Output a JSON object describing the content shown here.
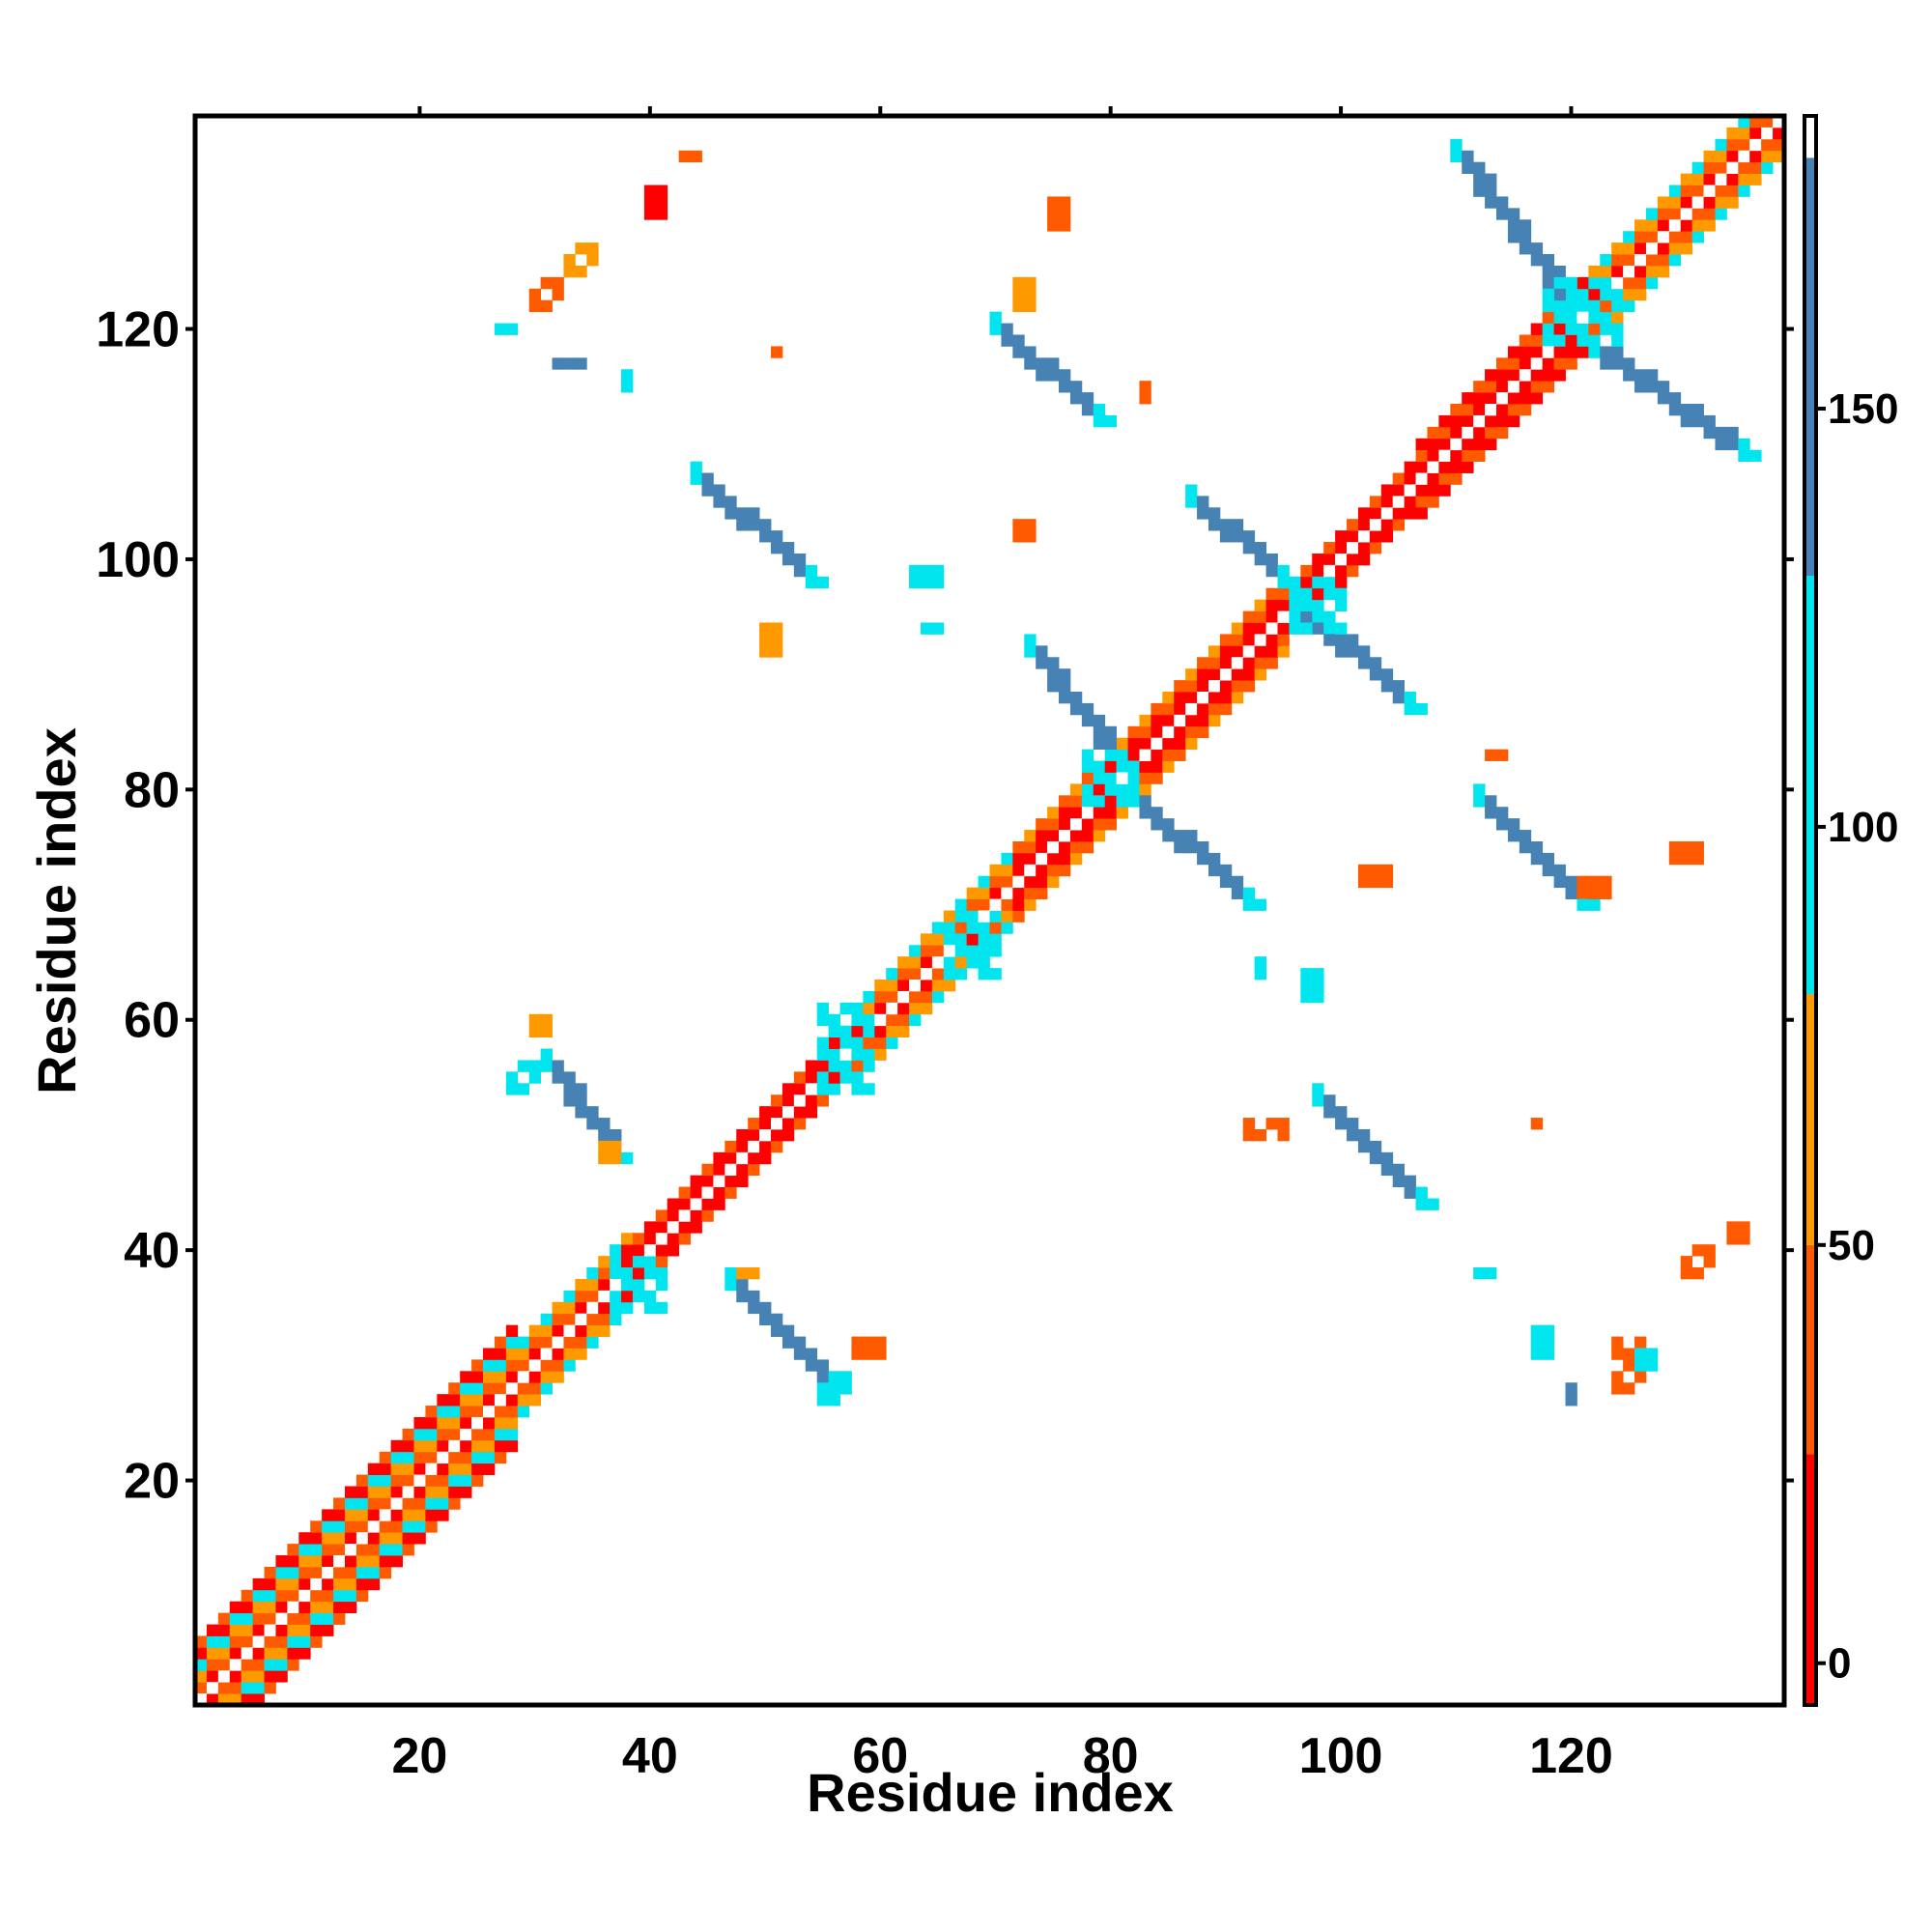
{
  "chart_data": {
    "type": "heatmap",
    "title": "",
    "xlabel": "Residue index",
    "ylabel": "Residue index",
    "xlim": [
      1,
      138
    ],
    "ylim": [
      1,
      138
    ],
    "x_ticks": [
      20,
      40,
      60,
      80,
      100,
      120
    ],
    "y_ticks": [
      20,
      40,
      60,
      80,
      100,
      120
    ],
    "colorbar": {
      "ticks": [
        0,
        50,
        100,
        150
      ],
      "range": [
        -5,
        185
      ],
      "bands": [
        {
          "from": -5,
          "to": 25,
          "color": "#ff0000"
        },
        {
          "from": 25,
          "to": 50,
          "color": "#ff5a00"
        },
        {
          "from": 50,
          "to": 80,
          "color": "#ff9900"
        },
        {
          "from": 80,
          "to": 130,
          "color": "#00e5ee"
        },
        {
          "from": 130,
          "to": 180,
          "color": "#4682b4"
        },
        {
          "from": 180,
          "to": 185,
          "color": "#ffffff"
        }
      ]
    },
    "diagonal_bands": [
      {
        "from": 1,
        "to": 28,
        "half_width": 5,
        "colors": [
          "#ff0000",
          "#ff5a00",
          "#ff9900",
          "#00e5ee"
        ]
      },
      {
        "from": 28,
        "to": 38,
        "half_width": 3,
        "colors": [
          "#ff0000",
          "#ff5a00",
          "#ff9900",
          "#00e5ee"
        ]
      },
      {
        "from": 38,
        "to": 58,
        "half_width": 2,
        "colors": [
          "#ff0000",
          "#ff0000",
          "#ff5a00"
        ]
      },
      {
        "from": 58,
        "to": 72,
        "half_width": 3,
        "colors": [
          "#ff0000",
          "#ff5a00",
          "#ff9900",
          "#00e5ee"
        ]
      },
      {
        "from": 72,
        "to": 95,
        "half_width": 3,
        "colors": [
          "#ff0000",
          "#ff0000",
          "#ff5a00",
          "#ff9900"
        ]
      },
      {
        "from": 95,
        "to": 107,
        "half_width": 2,
        "colors": [
          "#ff0000",
          "#ff0000",
          "#ff5a00"
        ]
      },
      {
        "from": 107,
        "to": 122,
        "half_width": 3,
        "colors": [
          "#ff0000",
          "#ff0000",
          "#ff5a00"
        ]
      },
      {
        "from": 122,
        "to": 138,
        "half_width": 3,
        "colors": [
          "#ff0000",
          "#ff5a00",
          "#ff9900",
          "#00e5ee"
        ]
      }
    ],
    "antidiagonal_strands": [
      {
        "x0": 47,
        "y0": 37,
        "x1": 56,
        "y1": 28,
        "width": 2,
        "color": "#4682b4"
      },
      {
        "x0": 31,
        "y0": 56,
        "x1": 37,
        "y1": 48,
        "width": 2,
        "color": "#4682b4"
      },
      {
        "x0": 44,
        "y0": 107,
        "x1": 54,
        "y1": 98,
        "width": 2,
        "color": "#4682b4"
      },
      {
        "x0": 73,
        "y0": 92,
        "x1": 81,
        "y1": 82,
        "width": 2,
        "color": "#4682b4"
      },
      {
        "x0": 82,
        "y0": 79,
        "x1": 92,
        "y1": 70,
        "width": 2,
        "color": "#4682b4"
      },
      {
        "x0": 87,
        "y0": 105,
        "x1": 95,
        "y1": 98,
        "width": 2,
        "color": "#4682b4"
      },
      {
        "x0": 96,
        "y0": 96,
        "x1": 106,
        "y1": 87,
        "width": 2,
        "color": "#4682b4"
      },
      {
        "x0": 98,
        "y0": 53,
        "x1": 107,
        "y1": 44,
        "width": 2,
        "color": "#4682b4"
      },
      {
        "x0": 112,
        "y0": 79,
        "x1": 121,
        "y1": 70,
        "width": 2,
        "color": "#4682b4"
      },
      {
        "x0": 70,
        "y0": 120,
        "x1": 79,
        "y1": 112,
        "width": 2,
        "color": "#4682b4"
      },
      {
        "x0": 110,
        "y0": 135,
        "x1": 120,
        "y1": 122,
        "width": 2,
        "color": "#4682b4"
      },
      {
        "x0": 122,
        "y0": 118,
        "x1": 135,
        "y1": 109,
        "width": 2,
        "color": "#4682b4"
      }
    ],
    "contact_patches": [
      {
        "x": 30,
        "y": 122,
        "w": 3,
        "h": 3,
        "color": "#ff5a00"
      },
      {
        "x": 33,
        "y": 125,
        "w": 3,
        "h": 3,
        "color": "#ff9900"
      },
      {
        "x": 40,
        "y": 130,
        "w": 2,
        "h": 3,
        "color": "#ff0000"
      },
      {
        "x": 43,
        "y": 135,
        "w": 2,
        "h": 1,
        "color": "#ff5a00"
      },
      {
        "x": 27,
        "y": 120,
        "w": 2,
        "h": 1,
        "color": "#00e5ee"
      },
      {
        "x": 32,
        "y": 117,
        "w": 3,
        "h": 1,
        "color": "#4682b4"
      },
      {
        "x": 38,
        "y": 115,
        "w": 1,
        "h": 2,
        "color": "#00e5ee"
      },
      {
        "x": 51,
        "y": 118,
        "w": 1,
        "h": 1,
        "color": "#ff5a00"
      },
      {
        "x": 72,
        "y": 122,
        "w": 2,
        "h": 3,
        "color": "#ff9900"
      },
      {
        "x": 75,
        "y": 129,
        "w": 2,
        "h": 3,
        "color": "#ff5a00"
      },
      {
        "x": 83,
        "y": 114,
        "w": 1,
        "h": 2,
        "color": "#ff5a00"
      },
      {
        "x": 50,
        "y": 92,
        "w": 2,
        "h": 3,
        "color": "#ff9900"
      },
      {
        "x": 63,
        "y": 98,
        "w": 3,
        "h": 2,
        "color": "#00e5ee"
      },
      {
        "x": 64,
        "y": 94,
        "w": 2,
        "h": 1,
        "color": "#00e5ee"
      },
      {
        "x": 72,
        "y": 102,
        "w": 2,
        "h": 2,
        "color": "#ff5a00"
      },
      {
        "x": 28,
        "y": 54,
        "w": 3,
        "h": 3,
        "color": "#00e5ee"
      },
      {
        "x": 30,
        "y": 59,
        "w": 2,
        "h": 2,
        "color": "#ff9900"
      },
      {
        "x": 36,
        "y": 48,
        "w": 2,
        "h": 2,
        "color": "#ff9900"
      },
      {
        "x": 55,
        "y": 27,
        "w": 3,
        "h": 3,
        "color": "#00e5ee"
      },
      {
        "x": 58,
        "y": 31,
        "w": 3,
        "h": 2,
        "color": "#ff5a00"
      },
      {
        "x": 48,
        "y": 38,
        "w": 2,
        "h": 1,
        "color": "#ff9900"
      },
      {
        "x": 92,
        "y": 50,
        "w": 4,
        "h": 2,
        "color": "#ff5a00"
      },
      {
        "x": 97,
        "y": 62,
        "w": 2,
        "h": 3,
        "color": "#00e5ee"
      },
      {
        "x": 93,
        "y": 64,
        "w": 1,
        "h": 2,
        "color": "#00e5ee"
      },
      {
        "x": 102,
        "y": 72,
        "w": 3,
        "h": 2,
        "color": "#ff5a00"
      },
      {
        "x": 113,
        "y": 83,
        "w": 2,
        "h": 1,
        "color": "#ff5a00"
      },
      {
        "x": 121,
        "y": 71,
        "w": 3,
        "h": 2,
        "color": "#ff5a00"
      },
      {
        "x": 129,
        "y": 74,
        "w": 3,
        "h": 2,
        "color": "#ff5a00"
      },
      {
        "x": 117,
        "y": 51,
        "w": 1,
        "h": 1,
        "color": "#ff5a00"
      },
      {
        "x": 112,
        "y": 38,
        "w": 2,
        "h": 1,
        "color": "#00e5ee"
      },
      {
        "x": 117,
        "y": 31,
        "w": 2,
        "h": 3,
        "color": "#00e5ee"
      },
      {
        "x": 120,
        "y": 27,
        "w": 1,
        "h": 2,
        "color": "#4682b4"
      },
      {
        "x": 124,
        "y": 28,
        "w": 3,
        "h": 5,
        "color": "#ff5a00"
      },
      {
        "x": 126,
        "y": 30,
        "w": 2,
        "h": 2,
        "color": "#00e5ee"
      },
      {
        "x": 130,
        "y": 38,
        "w": 3,
        "h": 3,
        "color": "#ff5a00"
      },
      {
        "x": 134,
        "y": 41,
        "w": 2,
        "h": 2,
        "color": "#ff5a00"
      },
      {
        "x": 37,
        "y": 35,
        "w": 5,
        "h": 5,
        "color": "#00e5ee"
      },
      {
        "x": 55,
        "y": 54,
        "w": 5,
        "h": 8,
        "color": "#00e5ee"
      },
      {
        "x": 66,
        "y": 64,
        "w": 5,
        "h": 6,
        "color": "#00e5ee"
      },
      {
        "x": 78,
        "y": 79,
        "w": 5,
        "h": 5,
        "color": "#00e5ee"
      },
      {
        "x": 96,
        "y": 94,
        "w": 5,
        "h": 5,
        "color": "#00e5ee"
      },
      {
        "x": 118,
        "y": 119,
        "w": 7,
        "h": 6,
        "color": "#00e5ee"
      }
    ]
  }
}
